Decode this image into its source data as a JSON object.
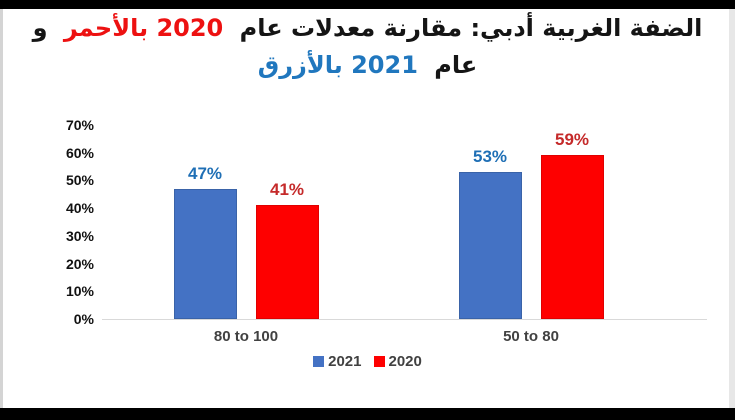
{
  "title": {
    "line1_part1": "الضفة الغربية أدبي: مقارنة معدلات عام",
    "line1_part2": "2020 بالأحمر",
    "line1_part3": "و",
    "line2_part1": "عام",
    "line2_part2": "2021 بالأزرق",
    "accent_red": "#ed1111",
    "accent_blue": "#2077be"
  },
  "chart_data": {
    "type": "bar",
    "categories": [
      "80 to 100",
      "50 to 80"
    ],
    "series": [
      {
        "name": "2021",
        "values": [
          47,
          53
        ],
        "color": "#4472c4",
        "border_color": "#3a63a8",
        "label_color": "#1f6fb5"
      },
      {
        "name": "2020",
        "values": [
          41,
          59
        ],
        "color": "#fe0000",
        "border_color": "#e00000",
        "label_color": "#c52a2a"
      }
    ],
    "value_suffix": "%",
    "title": "",
    "xlabel": "",
    "ylabel": "",
    "ylim": [
      0,
      70
    ],
    "yticks": [
      "0%",
      "10%",
      "20%",
      "30%",
      "40%",
      "50%",
      "60%",
      "70%"
    ],
    "ytick_step": 10,
    "grid": false,
    "data_labels": true,
    "legend_position": "bottom"
  }
}
